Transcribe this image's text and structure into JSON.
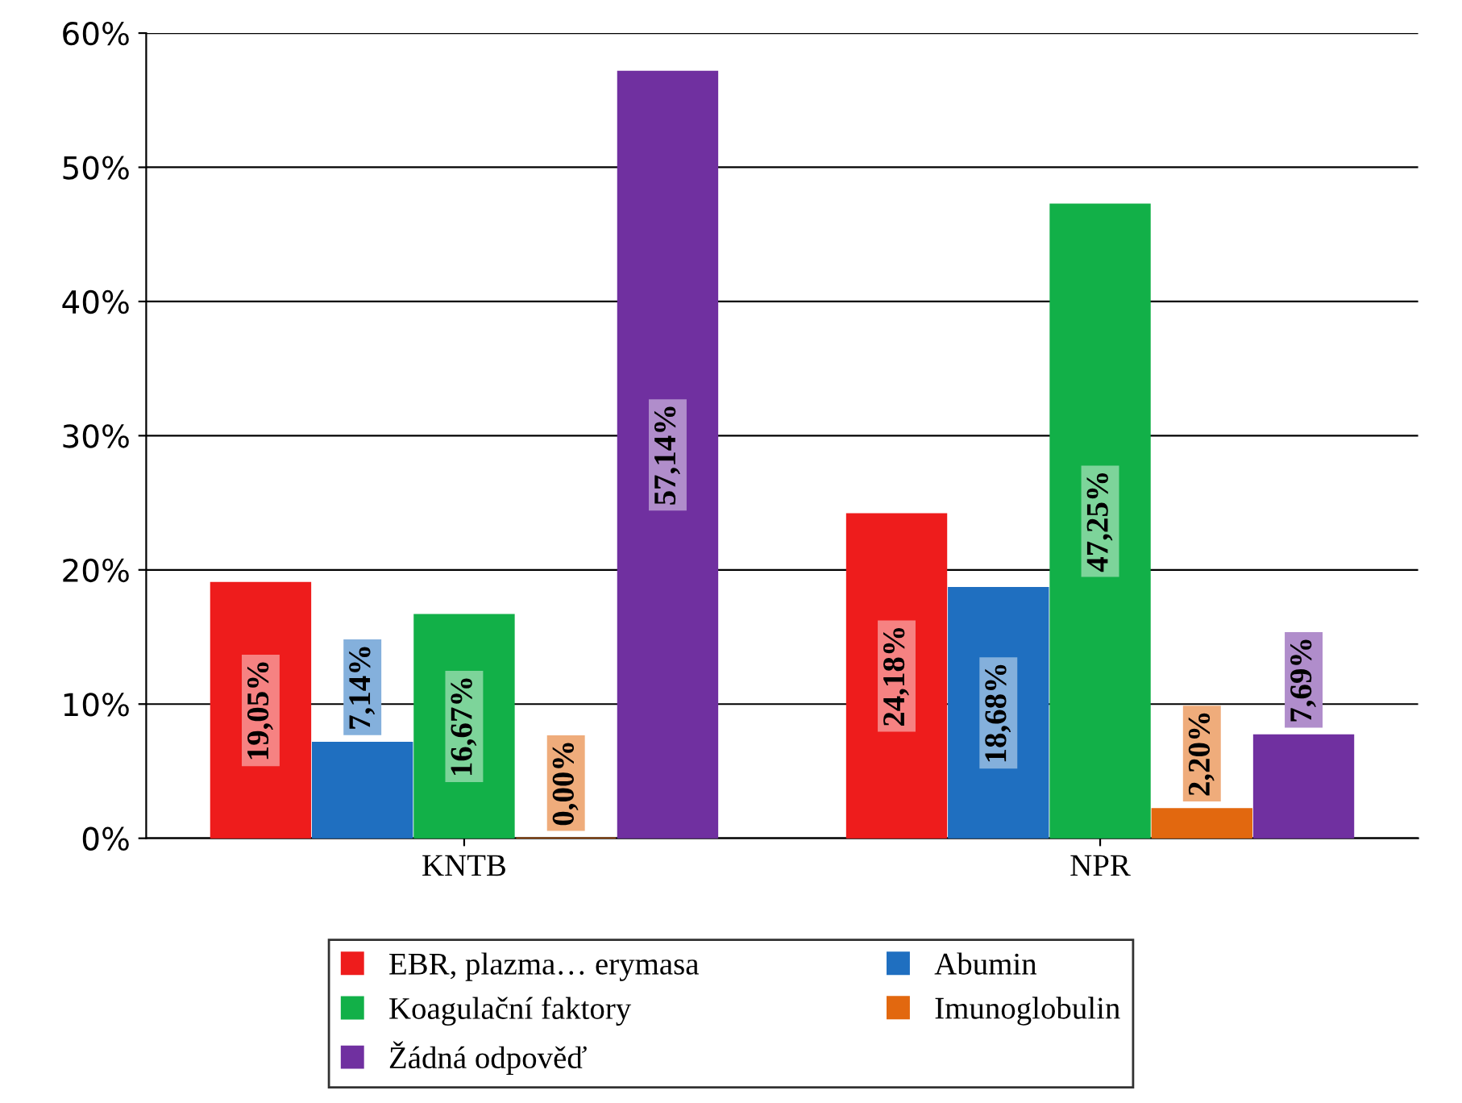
{
  "chart_data": {
    "type": "bar",
    "categories": [
      "KNTB",
      "NPR"
    ],
    "series": [
      {
        "name": "EBR, plazma… erymasa",
        "color": "#ee1c1c",
        "values": [
          19.05,
          24.18
        ],
        "value_labels": [
          "19,05%",
          "24,18%"
        ]
      },
      {
        "name": "Abumin",
        "color": "#1f6fc0",
        "values": [
          7.14,
          18.68
        ],
        "value_labels": [
          "7,14%",
          "18,68%"
        ]
      },
      {
        "name": "Koagulační faktory",
        "color": "#12b048",
        "values": [
          16.67,
          47.25
        ],
        "value_labels": [
          "16,67%",
          "47,25%"
        ]
      },
      {
        "name": "Imunoglobulin",
        "color": "#e2680f",
        "values": [
          0.0,
          2.2
        ],
        "value_labels": [
          "0,00%",
          "2,20%"
        ]
      },
      {
        "name": "Žádná odpověď",
        "color": "#7030a0",
        "values": [
          57.14,
          7.69
        ],
        "value_labels": [
          "57,14%",
          "7,69%"
        ]
      }
    ],
    "ylim": [
      0,
      60
    ],
    "yticks": [
      {
        "value": 0,
        "label": "0%"
      },
      {
        "value": 10,
        "label": "10%"
      },
      {
        "value": 20,
        "label": "20%"
      },
      {
        "value": 30,
        "label": "30%"
      },
      {
        "value": 40,
        "label": "40%"
      },
      {
        "value": 50,
        "label": "50%"
      },
      {
        "value": 60,
        "label": "60%"
      }
    ],
    "grid": "y",
    "legend": "bottom"
  }
}
